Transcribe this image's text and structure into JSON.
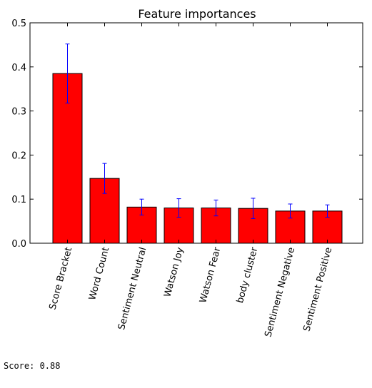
{
  "chart_data": {
    "type": "bar",
    "title": "Feature importances",
    "categories": [
      "Score Bracket",
      "Word Count",
      "Sentiment Neutral",
      "Watson Joy",
      "Watson Fear",
      "body cluster",
      "Sentiment Negative",
      "Sentiment Positive"
    ],
    "values": [
      0.385,
      0.147,
      0.082,
      0.08,
      0.08,
      0.079,
      0.073,
      0.073
    ],
    "errors": [
      0.067,
      0.034,
      0.018,
      0.021,
      0.018,
      0.023,
      0.016,
      0.014
    ],
    "ylim": [
      0,
      0.5
    ],
    "yticks": [
      "0.0",
      "0.1",
      "0.2",
      "0.3",
      "0.4",
      "0.5"
    ],
    "xlabel": "",
    "ylabel": "",
    "grid": false,
    "bar_color": "#ff0000",
    "error_color": "#0000ff"
  },
  "output": {
    "score_text": "Score: 0.88"
  }
}
